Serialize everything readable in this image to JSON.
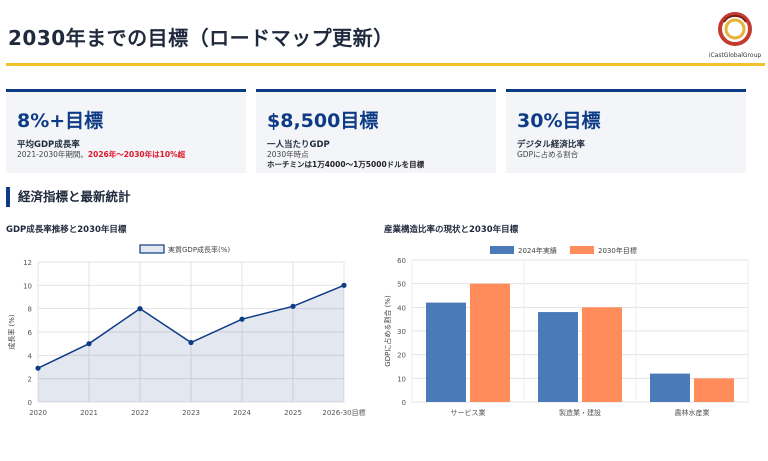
{
  "header": {
    "title": "2030年までの目標（ロードマップ更新）",
    "logo_text": "iCastGlobalGroup"
  },
  "cards": [
    {
      "big": "8%+目標",
      "label": "平均GDP成長率",
      "sub1": "2021-2030年期間。",
      "sub1_highlight": "2026年〜2030年は10%超"
    },
    {
      "big": "$8,500目標",
      "label": "一人当たりGDP",
      "sub1": "2030年時点",
      "sub2": "ホーチミンは1万4000〜1万5000ドルを目標"
    },
    {
      "big": "30%目標",
      "label": "デジタル経済比率",
      "sub1": "GDPに占める割合"
    }
  ],
  "section": {
    "title": "経済指標と最新統計"
  },
  "charts": {
    "left_title": "GDP成長率推移と2030年目標",
    "right_title": "産業構造比率の現状と2030年目標"
  },
  "colors": {
    "navy": "#0d3b85",
    "gold": "#f2c12e",
    "bar_blue": "#4a7ab8",
    "bar_orange": "#ff8c5a"
  },
  "chart_data": [
    {
      "type": "line",
      "title": "GDP成長率推移と2030年目標",
      "legend": "実質GDP成長率(%)",
      "categories": [
        "2020",
        "2021",
        "2022",
        "2023",
        "2024",
        "2025",
        "2026-30目標"
      ],
      "values": [
        2.9,
        5.0,
        8.0,
        5.1,
        7.1,
        8.2,
        10.0
      ],
      "ylabel": "成長率 (%)",
      "ylim": [
        0,
        12
      ],
      "yticks": [
        0,
        2,
        4,
        6,
        8,
        10,
        12
      ]
    },
    {
      "type": "bar",
      "title": "産業構造比率の現状と2030年目標",
      "categories": [
        "サービス業",
        "製造業・建設",
        "農林水産業"
      ],
      "series": [
        {
          "name": "2024年実績",
          "values": [
            42,
            38,
            12
          ]
        },
        {
          "name": "2030年目標",
          "values": [
            50,
            40,
            10
          ]
        }
      ],
      "ylabel": "GDPに占める割合 (%)",
      "ylim": [
        0,
        60
      ],
      "yticks": [
        0,
        10,
        20,
        30,
        40,
        50,
        60
      ]
    }
  ]
}
